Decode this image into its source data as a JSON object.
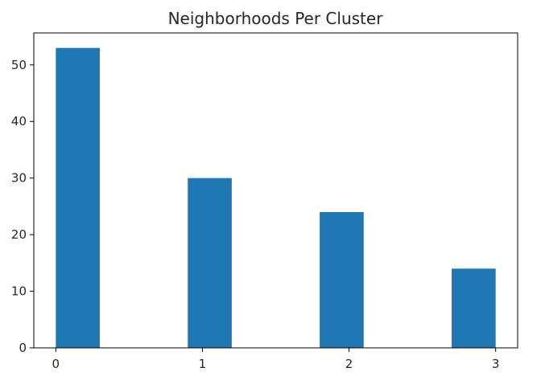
{
  "chart_data": {
    "type": "bar",
    "title": "Neighborhoods Per Cluster",
    "xlabel": "",
    "ylabel": "",
    "x_ticks": [
      "0",
      "1",
      "2",
      "3"
    ],
    "y_ticks": [
      "0",
      "10",
      "20",
      "30",
      "40",
      "50"
    ],
    "series": [
      {
        "values": [
          53,
          30,
          24,
          14
        ],
        "color": "#1f77b4"
      }
    ],
    "bins": [
      {
        "start": 0.0,
        "end": 0.3,
        "count": 53
      },
      {
        "start": 0.9,
        "end": 1.2,
        "count": 30
      },
      {
        "start": 1.8,
        "end": 2.1,
        "count": 24
      },
      {
        "start": 2.7,
        "end": 3.0,
        "count": 14
      }
    ],
    "xlim": [
      -0.15,
      3.15
    ],
    "ylim": [
      0,
      55.65
    ],
    "grid": false,
    "legend": "none"
  }
}
